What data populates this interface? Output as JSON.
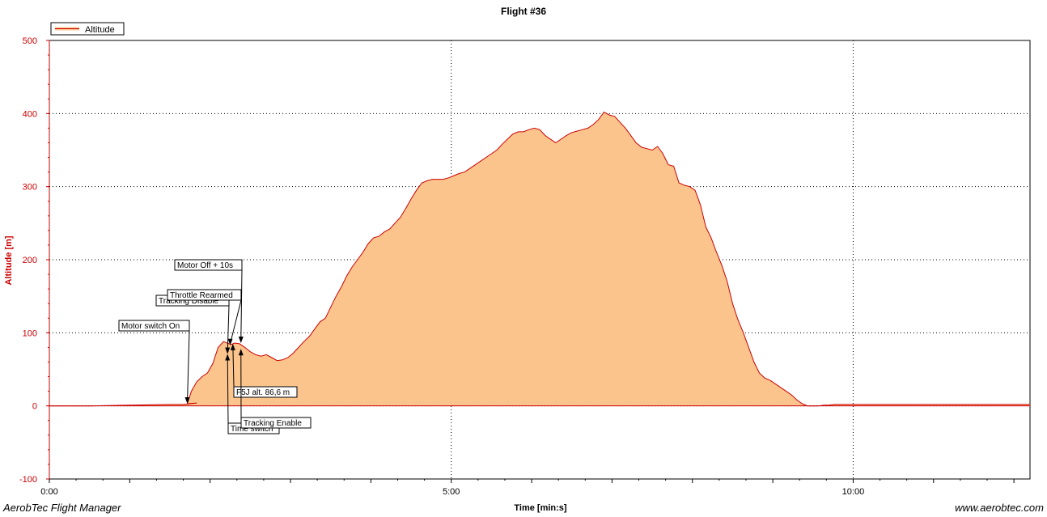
{
  "chart_data": {
    "type": "area",
    "title": "Flight #36",
    "xlabel": "Time [min:s]",
    "ylabel": "Altitude [m]",
    "x_unit": "seconds",
    "xlim": [
      0,
      732
    ],
    "ylim": [
      -100,
      500
    ],
    "x_ticks": [
      {
        "value": 0,
        "label": "0:00"
      },
      {
        "value": 300,
        "label": "5:00"
      },
      {
        "value": 600,
        "label": "10:00"
      }
    ],
    "y_ticks": [
      -100,
      0,
      100,
      200,
      300,
      400,
      500
    ],
    "grid": "dotted",
    "legend": {
      "placement": "top-left",
      "entries": [
        "Altitude"
      ]
    },
    "colors": {
      "line": "#cc0000",
      "fill": "#fcc48d",
      "axis": "#cc0000",
      "grid": "#000000"
    },
    "series": [
      {
        "name": "Altitude",
        "x": [
          0,
          30,
          60,
          90,
          100,
          110,
          103,
          106,
          110,
          114,
          118,
          122,
          126,
          130,
          134,
          136,
          138,
          142,
          146,
          150,
          154,
          158,
          162,
          166,
          170,
          174,
          178,
          182,
          186,
          190,
          194,
          198,
          202,
          206,
          210,
          214,
          218,
          222,
          226,
          230,
          234,
          238,
          242,
          246,
          250,
          254,
          258,
          262,
          266,
          270,
          274,
          278,
          282,
          286,
          290,
          294,
          298,
          302,
          306,
          310,
          314,
          318,
          322,
          326,
          330,
          334,
          338,
          342,
          346,
          350,
          354,
          358,
          362,
          366,
          370,
          374,
          378,
          382,
          386,
          390,
          394,
          398,
          402,
          406,
          410,
          414,
          418,
          422,
          426,
          430,
          434,
          438,
          442,
          446,
          450,
          454,
          458,
          462,
          466,
          470,
          474,
          478,
          482,
          486,
          490,
          494,
          498,
          502,
          506,
          510,
          514,
          518,
          522,
          526,
          530,
          534,
          538,
          542,
          546,
          550,
          554,
          558,
          562,
          566,
          570,
          574,
          578,
          582,
          586,
          590,
          594,
          598,
          602,
          606,
          610,
          614,
          618,
          622,
          626,
          630,
          634,
          638,
          642,
          646,
          650,
          654,
          658,
          662,
          666,
          670,
          674,
          678,
          682,
          686,
          690,
          700,
          710,
          720,
          732
        ],
        "y": [
          0,
          0,
          1,
          2,
          2,
          4,
          3,
          20,
          33,
          40,
          45,
          58,
          80,
          88,
          85,
          84,
          86,
          85,
          80,
          74,
          70,
          68,
          70,
          66,
          62,
          63,
          66,
          72,
          80,
          88,
          95,
          105,
          115,
          120,
          135,
          150,
          163,
          178,
          190,
          200,
          210,
          222,
          230,
          232,
          238,
          242,
          250,
          258,
          270,
          283,
          295,
          305,
          308,
          310,
          310,
          310,
          312,
          315,
          318,
          320,
          325,
          330,
          335,
          340,
          345,
          350,
          358,
          365,
          372,
          375,
          375,
          378,
          380,
          378,
          370,
          365,
          360,
          365,
          370,
          374,
          376,
          378,
          380,
          385,
          392,
          402,
          398,
          396,
          388,
          380,
          370,
          360,
          354,
          352,
          350,
          355,
          345,
          330,
          328,
          305,
          302,
          300,
          295,
          275,
          245,
          230,
          210,
          192,
          170,
          140,
          118,
          100,
          80,
          60,
          45,
          38,
          35,
          30,
          25,
          20,
          15,
          8,
          3,
          0,
          0,
          0,
          1,
          1,
          2,
          2,
          2,
          2,
          2,
          2,
          2,
          2,
          2,
          2,
          2,
          2,
          2,
          2,
          2,
          2,
          2,
          2,
          2,
          2,
          2,
          2,
          2,
          2,
          2,
          2,
          2,
          2,
          2,
          2,
          2
        ],
        "note": ""
      }
    ],
    "annotations": [
      {
        "label": "Motor switch On",
        "x": 103,
        "y": 3
      },
      {
        "label": "Tracking Disable",
        "x": 133,
        "y": 71
      },
      {
        "label": "Throttle Rearmed",
        "x": 135,
        "y": 83
      },
      {
        "label": "Motor Off + 10s",
        "x": 143,
        "y": 86
      },
      {
        "label": "F5J alt. 86,6 m",
        "x": 137,
        "y": 85
      },
      {
        "label": "Time switch",
        "x": 133,
        "y": 71
      },
      {
        "label": "Tracking Enable",
        "x": 143,
        "y": 78
      }
    ]
  },
  "footer": {
    "left": "AerobTec Flight Manager",
    "right": "www.aerobtec.com"
  }
}
